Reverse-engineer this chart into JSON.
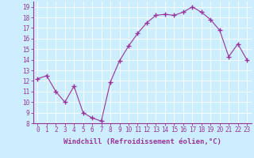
{
  "x": [
    0,
    1,
    2,
    3,
    4,
    5,
    6,
    7,
    8,
    9,
    10,
    11,
    12,
    13,
    14,
    15,
    16,
    17,
    18,
    19,
    20,
    21,
    22,
    23
  ],
  "y": [
    12.2,
    12.5,
    11.0,
    10.0,
    11.5,
    9.0,
    8.5,
    8.2,
    11.9,
    13.9,
    15.3,
    16.5,
    17.5,
    18.2,
    18.3,
    18.2,
    18.5,
    19.0,
    18.5,
    17.8,
    16.8,
    14.3,
    15.5,
    14.0
  ],
  "line_color": "#993399",
  "marker": "+",
  "marker_size": 4,
  "bg_color": "#cceeff",
  "grid_color": "#ffffff",
  "xlabel": "Windchill (Refroidissement éolien,°C)",
  "ylim": [
    8,
    19.5
  ],
  "xlim": [
    -0.5,
    23.5
  ],
  "yticks": [
    8,
    9,
    10,
    11,
    12,
    13,
    14,
    15,
    16,
    17,
    18,
    19
  ],
  "xticks": [
    0,
    1,
    2,
    3,
    4,
    5,
    6,
    7,
    8,
    9,
    10,
    11,
    12,
    13,
    14,
    15,
    16,
    17,
    18,
    19,
    20,
    21,
    22,
    23
  ],
  "tick_color": "#993399",
  "label_color": "#993399",
  "axis_color": "#993399",
  "xlabel_fontsize": 6.5,
  "tick_fontsize": 5.5
}
